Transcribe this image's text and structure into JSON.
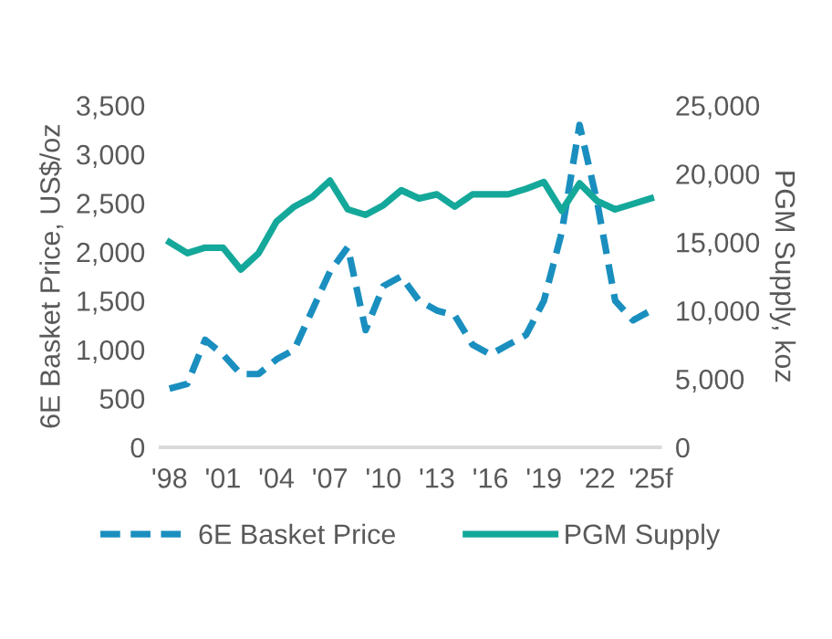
{
  "chart_data": {
    "type": "line",
    "ylabel": "6E Basket Price, US$/oz",
    "y2label": "PGM Supply, koz",
    "categories": [
      "'98",
      null,
      null,
      "'01",
      null,
      null,
      "'04",
      null,
      null,
      "'07",
      null,
      null,
      "'10",
      null,
      null,
      "'13",
      null,
      null,
      "'16",
      null,
      null,
      "'19",
      null,
      null,
      "'22",
      null,
      null,
      "'25f"
    ],
    "series": [
      {
        "name": "6E Basket Price",
        "color": "#1a8fbf",
        "line_style": "dashed",
        "values": [
          600,
          650,
          1100,
          950,
          750,
          750,
          900,
          1000,
          1400,
          1800,
          2050,
          1200,
          1650,
          1750,
          1500,
          1400,
          1350,
          1050,
          950,
          1050,
          1150,
          1500,
          2200,
          3300,
          2500,
          1500,
          1300,
          1400
        ]
      },
      {
        "name": "PGM Supply",
        "color": "#14a89a",
        "line_style": "solid",
        "axis": "y2",
        "values": [
          15000,
          14200,
          14600,
          14600,
          13000,
          14200,
          16500,
          17600,
          18300,
          19500,
          17400,
          17000,
          17700,
          18800,
          18200,
          18500,
          17600,
          18500,
          18500,
          18500,
          18900,
          19400,
          17300,
          19300,
          18000,
          17400,
          17800,
          18200
        ]
      }
    ],
    "ylim": [
      0,
      3500
    ],
    "yticks": [
      0,
      {
        "value": 500,
        "label": "500"
      },
      {
        "value": 1000,
        "label": "1,000"
      },
      {
        "value": 1500,
        "label": "1,500"
      },
      {
        "value": 2000,
        "label": "2,000"
      },
      {
        "value": 2500,
        "label": "2,500"
      },
      {
        "value": 3000,
        "label": "3,000"
      },
      {
        "value": 3500,
        "label": "3,500"
      }
    ],
    "y2lim": [
      0,
      25000
    ],
    "y2ticks": [
      0,
      {
        "value": 5000,
        "label": "5,000"
      },
      {
        "value": 10000,
        "label": "10,000"
      },
      {
        "value": 15000,
        "label": "15,000"
      },
      {
        "value": 20000,
        "label": "20,000"
      },
      {
        "value": 25000,
        "label": "25,000"
      }
    ],
    "legend": "bottom",
    "grid": false
  }
}
